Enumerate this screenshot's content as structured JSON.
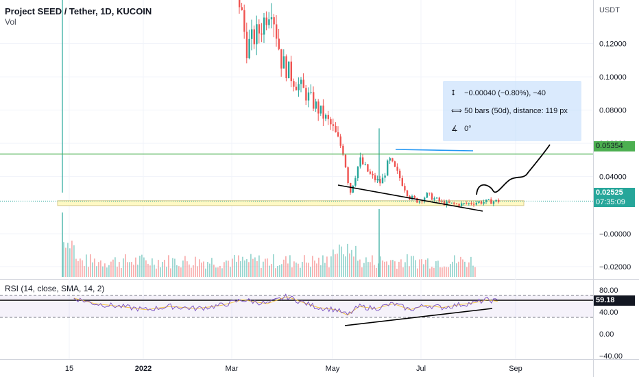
{
  "header": {
    "title": "Project SEED / Tether, 1D, KUCOIN",
    "volume_label": "Vol",
    "rsi_label": "RSI (14, close, SMA, 14, 2)"
  },
  "price_axis": {
    "currency": "USDT",
    "ticks": [
      "0.12000",
      "0.10000",
      "0.08000",
      "0.06000",
      "0.04000",
      "−0.00000",
      "−0.02000"
    ]
  },
  "badges": {
    "level_price": "0.05354",
    "last_price": "0.02525",
    "countdown": "07:35:09",
    "rsi_value": "59.18"
  },
  "rsi_axis": {
    "ticks": [
      "80.00",
      "40.00",
      "0.00",
      "−40.00"
    ]
  },
  "time_axis": {
    "labels": [
      "15",
      "2022",
      "Mar",
      "May",
      "Jul",
      "Sep"
    ]
  },
  "measure_tool": {
    "price_change": "−0.00040 (−0.80%), −40",
    "bars_distance": "50 bars (50d), distance: 119 px",
    "angle": "0°"
  },
  "colors": {
    "up": "#26a69a",
    "down": "#ef5350",
    "level_line": "#4caf50",
    "trend_line": "#000000",
    "resistance_line": "#2196f3",
    "rsi_line": "#7e57c2",
    "rsi_sma": "#f5c542",
    "support_zone": "#fff9c4"
  },
  "chart_data": {
    "type": "candlestick",
    "symbol": "Project SEED / Tether",
    "interval": "1D",
    "exchange": "KUCOIN",
    "ylim": [
      -0.028,
      0.14
    ],
    "horizontal_level": 0.05354,
    "last_price": 0.02525,
    "support_zone": [
      0.0226,
      0.0255
    ],
    "close_path": [
      {
        "date": "2022-03-01",
        "close": 0.155
      },
      {
        "date": "2022-03-07",
        "close": 0.118
      },
      {
        "date": "2022-03-15",
        "close": 0.128
      },
      {
        "date": "2022-03-22",
        "close": 0.145
      },
      {
        "date": "2022-03-28",
        "close": 0.11
      },
      {
        "date": "2022-04-05",
        "close": 0.098
      },
      {
        "date": "2022-04-12",
        "close": 0.09
      },
      {
        "date": "2022-04-20",
        "close": 0.08
      },
      {
        "date": "2022-04-28",
        "close": 0.07
      },
      {
        "date": "2022-05-05",
        "close": 0.055
      },
      {
        "date": "2022-05-09",
        "close": 0.03
      },
      {
        "date": "2022-05-15",
        "close": 0.05
      },
      {
        "date": "2022-05-22",
        "close": 0.04
      },
      {
        "date": "2022-05-28",
        "close": 0.036
      },
      {
        "date": "2022-06-02",
        "close": 0.05
      },
      {
        "date": "2022-06-08",
        "close": 0.04
      },
      {
        "date": "2022-06-14",
        "close": 0.028
      },
      {
        "date": "2022-06-20",
        "close": 0.025
      },
      {
        "date": "2022-06-25",
        "close": 0.029
      },
      {
        "date": "2022-07-05",
        "close": 0.024
      },
      {
        "date": "2022-07-15",
        "close": 0.0232
      },
      {
        "date": "2022-07-25",
        "close": 0.0245
      },
      {
        "date": "2022-08-08",
        "close": 0.0253
      }
    ],
    "rsi": {
      "ylim": [
        -45,
        85
      ],
      "bands": [
        70,
        30
      ],
      "value": 59.18,
      "series": [
        {
          "date": "2021-11-22",
          "value": 65
        },
        {
          "date": "2021-12-05",
          "value": 55
        },
        {
          "date": "2021-12-20",
          "value": 50
        },
        {
          "date": "2022-01-05",
          "value": 44
        },
        {
          "date": "2022-01-20",
          "value": 50
        },
        {
          "date": "2022-02-05",
          "value": 46
        },
        {
          "date": "2022-02-20",
          "value": 52
        },
        {
          "date": "2022-03-05",
          "value": 62
        },
        {
          "date": "2022-03-20",
          "value": 55
        },
        {
          "date": "2022-04-01",
          "value": 68
        },
        {
          "date": "2022-04-10",
          "value": 58
        },
        {
          "date": "2022-04-20",
          "value": 48
        },
        {
          "date": "2022-05-01",
          "value": 44
        },
        {
          "date": "2022-05-08",
          "value": 34
        },
        {
          "date": "2022-05-15",
          "value": 50
        },
        {
          "date": "2022-05-25",
          "value": 46
        },
        {
          "date": "2022-06-05",
          "value": 55
        },
        {
          "date": "2022-06-15",
          "value": 44
        },
        {
          "date": "2022-06-25",
          "value": 52
        },
        {
          "date": "2022-07-05",
          "value": 48
        },
        {
          "date": "2022-07-15",
          "value": 53
        },
        {
          "date": "2022-07-25",
          "value": 57
        },
        {
          "date": "2022-08-01",
          "value": 62
        },
        {
          "date": "2022-08-08",
          "value": 59.18
        }
      ]
    }
  }
}
